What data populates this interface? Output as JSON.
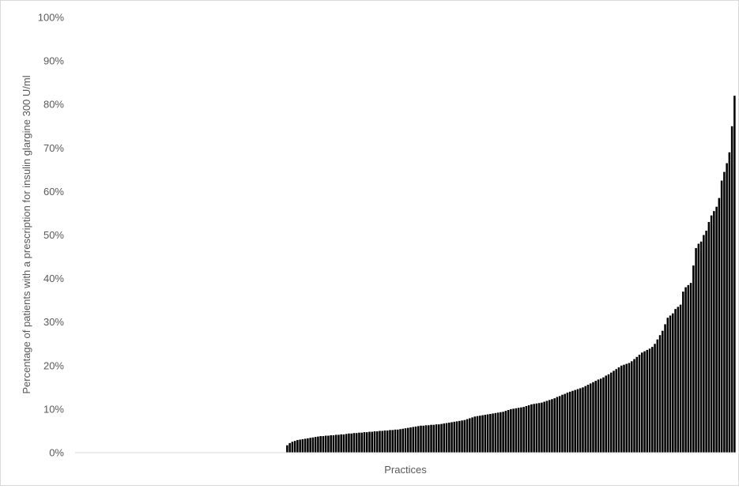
{
  "chart_data": {
    "type": "bar",
    "title": "",
    "xlabel": "Practices",
    "ylabel": "Percentage of patients with a prescription for  insulin glargine 300 U/ml",
    "ylim": [
      0,
      100
    ],
    "yticks": [
      "0%",
      "10%",
      "20%",
      "30%",
      "40%",
      "50%",
      "60%",
      "70%",
      "80%",
      "90%",
      "100%"
    ],
    "grid": false,
    "legend": "none",
    "bar_color": "#000000",
    "zero_practices": 82,
    "series": [
      {
        "values": [
          1.7,
          2.2,
          2.5,
          2.7,
          2.9,
          3.0,
          3.1,
          3.2,
          3.3,
          3.4,
          3.5,
          3.6,
          3.7,
          3.8,
          3.8,
          3.9,
          3.9,
          4.0,
          4.0,
          4.1,
          4.1,
          4.2,
          4.2,
          4.3,
          4.4,
          4.4,
          4.5,
          4.5,
          4.6,
          4.6,
          4.7,
          4.7,
          4.8,
          4.8,
          4.9,
          4.9,
          5.0,
          5.0,
          5.1,
          5.1,
          5.2,
          5.2,
          5.3,
          5.3,
          5.4,
          5.5,
          5.6,
          5.7,
          5.8,
          5.9,
          6.0,
          6.1,
          6.2,
          6.2,
          6.3,
          6.3,
          6.4,
          6.4,
          6.5,
          6.5,
          6.6,
          6.7,
          6.8,
          6.9,
          7.0,
          7.1,
          7.2,
          7.3,
          7.4,
          7.5,
          7.7,
          7.9,
          8.1,
          8.3,
          8.4,
          8.5,
          8.6,
          8.7,
          8.8,
          8.9,
          9.0,
          9.1,
          9.2,
          9.3,
          9.4,
          9.6,
          9.8,
          10.0,
          10.1,
          10.2,
          10.3,
          10.4,
          10.5,
          10.7,
          10.9,
          11.1,
          11.2,
          11.3,
          11.4,
          11.5,
          11.7,
          11.9,
          12.1,
          12.3,
          12.5,
          12.8,
          13.0,
          13.3,
          13.5,
          13.8,
          14.0,
          14.2,
          14.4,
          14.6,
          14.8,
          15.0,
          15.3,
          15.6,
          15.9,
          16.2,
          16.5,
          16.8,
          17.0,
          17.3,
          17.7,
          18.0,
          18.4,
          18.8,
          19.2,
          19.6,
          20.0,
          20.2,
          20.4,
          20.6,
          21.0,
          21.5,
          22.0,
          22.5,
          23.0,
          23.3,
          23.6,
          23.9,
          24.3,
          25.0,
          26.0,
          27.0,
          28.0,
          29.5,
          31.0,
          31.5,
          32.0,
          33.0,
          33.5,
          34.0,
          37.0,
          38.0,
          38.5,
          39.0,
          43.0,
          47.0,
          48.0,
          48.5,
          50.0,
          51.0,
          53.0,
          54.5,
          55.5,
          56.5,
          58.5,
          62.5,
          64.5,
          66.5,
          69.0,
          75.0,
          82.0
        ]
      }
    ]
  }
}
